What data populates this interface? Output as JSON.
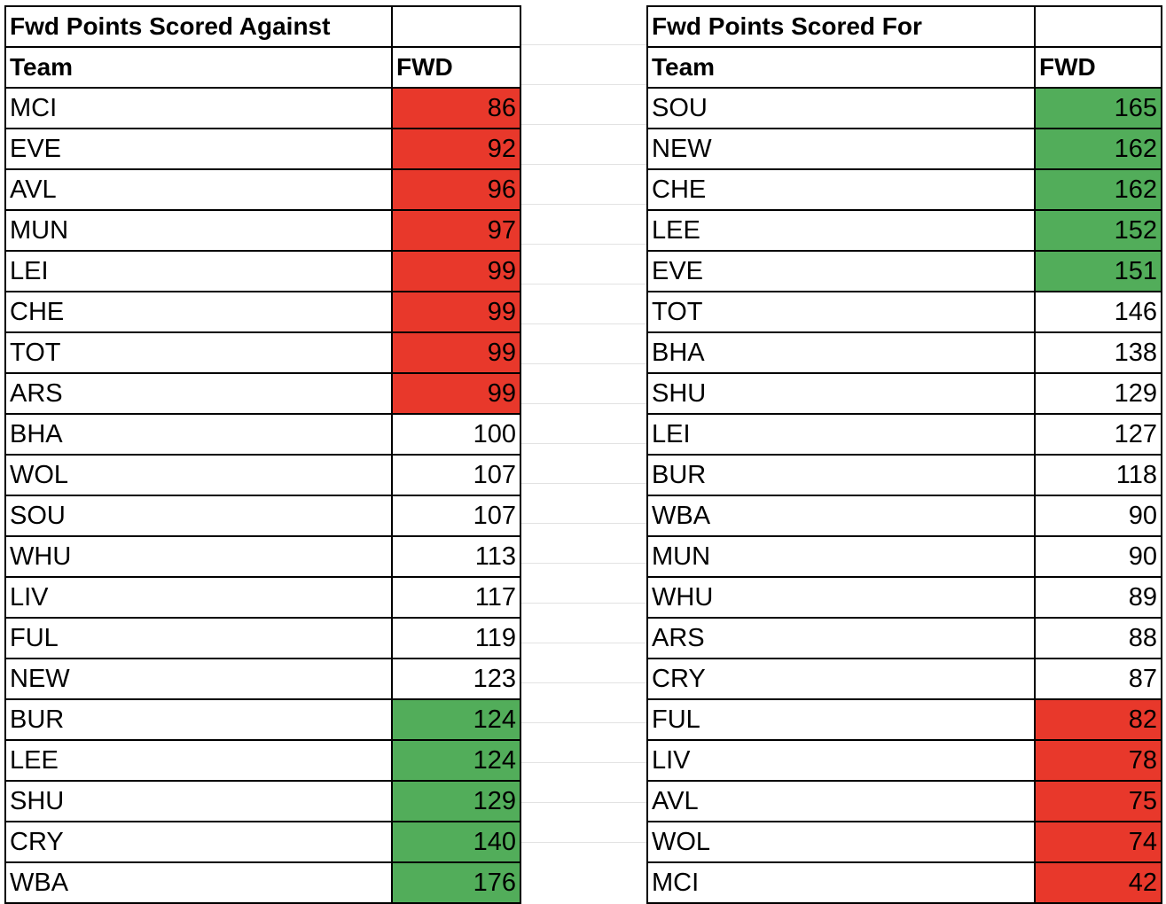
{
  "tables": [
    {
      "id": "left",
      "title": "Fwd Points Scored Against",
      "headers": [
        "Team",
        "FWD"
      ],
      "rows": [
        {
          "team": "MCI",
          "fwd": "86",
          "highlight": "red"
        },
        {
          "team": "EVE",
          "fwd": "92",
          "highlight": "red"
        },
        {
          "team": "AVL",
          "fwd": "96",
          "highlight": "red"
        },
        {
          "team": "MUN",
          "fwd": "97",
          "highlight": "red"
        },
        {
          "team": "LEI",
          "fwd": "99",
          "highlight": "red"
        },
        {
          "team": "CHE",
          "fwd": "99",
          "highlight": "red"
        },
        {
          "team": "TOT",
          "fwd": "99",
          "highlight": "red"
        },
        {
          "team": "ARS",
          "fwd": "99",
          "highlight": "red"
        },
        {
          "team": "BHA",
          "fwd": "100",
          "highlight": "none"
        },
        {
          "team": "WOL",
          "fwd": "107",
          "highlight": "none"
        },
        {
          "team": "SOU",
          "fwd": "107",
          "highlight": "none"
        },
        {
          "team": "WHU",
          "fwd": "113",
          "highlight": "none"
        },
        {
          "team": "LIV",
          "fwd": "117",
          "highlight": "none"
        },
        {
          "team": "FUL",
          "fwd": "119",
          "highlight": "none"
        },
        {
          "team": "NEW",
          "fwd": "123",
          "highlight": "none"
        },
        {
          "team": "BUR",
          "fwd": "124",
          "highlight": "green"
        },
        {
          "team": "LEE",
          "fwd": "124",
          "highlight": "green"
        },
        {
          "team": "SHU",
          "fwd": "129",
          "highlight": "green"
        },
        {
          "team": "CRY",
          "fwd": "140",
          "highlight": "green"
        },
        {
          "team": "WBA",
          "fwd": "176",
          "highlight": "green"
        }
      ]
    },
    {
      "id": "right",
      "title": "Fwd Points Scored For",
      "headers": [
        "Team",
        "FWD"
      ],
      "rows": [
        {
          "team": "SOU",
          "fwd": "165",
          "highlight": "green"
        },
        {
          "team": "NEW",
          "fwd": "162",
          "highlight": "green"
        },
        {
          "team": "CHE",
          "fwd": "162",
          "highlight": "green"
        },
        {
          "team": "LEE",
          "fwd": "152",
          "highlight": "green"
        },
        {
          "team": "EVE",
          "fwd": "151",
          "highlight": "green"
        },
        {
          "team": "TOT",
          "fwd": "146",
          "highlight": "none"
        },
        {
          "team": "BHA",
          "fwd": "138",
          "highlight": "none"
        },
        {
          "team": "SHU",
          "fwd": "129",
          "highlight": "none"
        },
        {
          "team": "LEI",
          "fwd": "127",
          "highlight": "none"
        },
        {
          "team": "BUR",
          "fwd": "118",
          "highlight": "none"
        },
        {
          "team": "WBA",
          "fwd": "90",
          "highlight": "none"
        },
        {
          "team": "MUN",
          "fwd": "90",
          "highlight": "none"
        },
        {
          "team": "WHU",
          "fwd": "89",
          "highlight": "none"
        },
        {
          "team": "ARS",
          "fwd": "88",
          "highlight": "none"
        },
        {
          "team": "CRY",
          "fwd": "87",
          "highlight": "none"
        },
        {
          "team": "FUL",
          "fwd": "82",
          "highlight": "red"
        },
        {
          "team": "LIV",
          "fwd": "78",
          "highlight": "red"
        },
        {
          "team": "AVL",
          "fwd": "75",
          "highlight": "red"
        },
        {
          "team": "WOL",
          "fwd": "74",
          "highlight": "red"
        },
        {
          "team": "MCI",
          "fwd": "42",
          "highlight": "red"
        }
      ]
    }
  ],
  "colors": {
    "red": "#e8382b",
    "green": "#52ad5a",
    "border": "#000000",
    "gridline": "#e2e2e2"
  }
}
